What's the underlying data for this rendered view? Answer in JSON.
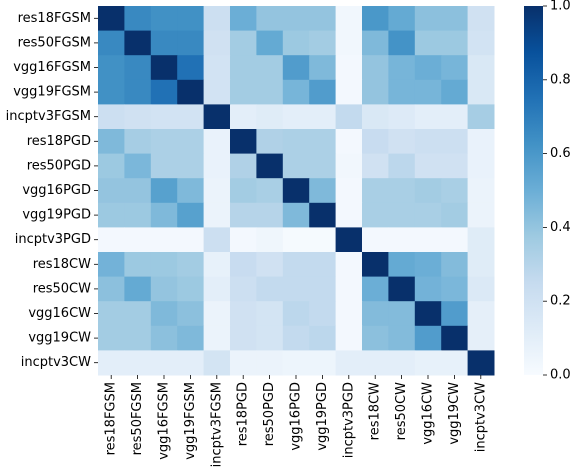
{
  "chart_data": {
    "type": "heatmap",
    "title": "",
    "xlabel": "",
    "ylabel": "",
    "x_labels": [
      "res18FGSM",
      "res50FGSM",
      "vgg16FGSM",
      "vgg19FGSM",
      "incptv3FGSM",
      "res18PGD",
      "res50PGD",
      "vgg16PGD",
      "vgg19PGD",
      "incptv3PGD",
      "res18CW",
      "res50CW",
      "vgg16CW",
      "vgg19CW",
      "incptv3CW"
    ],
    "y_labels": [
      "res18FGSM",
      "res50FGSM",
      "vgg16FGSM",
      "vgg19FGSM",
      "incptv3FGSM",
      "res18PGD",
      "res50PGD",
      "vgg16PGD",
      "vgg19PGD",
      "incptv3PGD",
      "res18CW",
      "res50CW",
      "vgg16CW",
      "vgg19CW",
      "incptv3CW"
    ],
    "values": [
      [
        1.0,
        0.66,
        0.63,
        0.63,
        0.22,
        0.5,
        0.4,
        0.4,
        0.4,
        0.03,
        0.6,
        0.52,
        0.42,
        0.42,
        0.2
      ],
      [
        0.66,
        1.0,
        0.66,
        0.66,
        0.2,
        0.36,
        0.52,
        0.38,
        0.36,
        0.03,
        0.45,
        0.62,
        0.38,
        0.38,
        0.19
      ],
      [
        0.63,
        0.66,
        1.0,
        0.75,
        0.19,
        0.36,
        0.36,
        0.58,
        0.45,
        0.02,
        0.4,
        0.47,
        0.5,
        0.47,
        0.15
      ],
      [
        0.63,
        0.66,
        0.75,
        1.0,
        0.19,
        0.36,
        0.36,
        0.47,
        0.58,
        0.02,
        0.4,
        0.47,
        0.47,
        0.52,
        0.15
      ],
      [
        0.22,
        0.2,
        0.19,
        0.19,
        1.0,
        0.1,
        0.12,
        0.1,
        0.1,
        0.26,
        0.15,
        0.13,
        0.1,
        0.1,
        0.35
      ],
      [
        0.45,
        0.35,
        0.33,
        0.33,
        0.07,
        1.0,
        0.32,
        0.33,
        0.33,
        0.02,
        0.24,
        0.2,
        0.22,
        0.22,
        0.07
      ],
      [
        0.38,
        0.46,
        0.33,
        0.33,
        0.07,
        0.32,
        1.0,
        0.33,
        0.33,
        0.03,
        0.2,
        0.28,
        0.2,
        0.2,
        0.07
      ],
      [
        0.4,
        0.4,
        0.56,
        0.45,
        0.06,
        0.36,
        0.34,
        1.0,
        0.45,
        0.02,
        0.34,
        0.34,
        0.36,
        0.34,
        0.06
      ],
      [
        0.38,
        0.38,
        0.45,
        0.56,
        0.06,
        0.3,
        0.3,
        0.45,
        1.0,
        0.02,
        0.34,
        0.34,
        0.34,
        0.36,
        0.06
      ],
      [
        0.02,
        0.02,
        0.02,
        0.02,
        0.22,
        0.02,
        0.04,
        0.01,
        0.01,
        1.0,
        0.02,
        0.02,
        0.02,
        0.02,
        0.12
      ],
      [
        0.48,
        0.38,
        0.38,
        0.36,
        0.08,
        0.24,
        0.2,
        0.26,
        0.26,
        0.02,
        1.0,
        0.52,
        0.5,
        0.44,
        0.12
      ],
      [
        0.42,
        0.52,
        0.4,
        0.38,
        0.1,
        0.22,
        0.26,
        0.26,
        0.26,
        0.02,
        0.5,
        1.0,
        0.48,
        0.46,
        0.14
      ],
      [
        0.36,
        0.36,
        0.45,
        0.42,
        0.06,
        0.2,
        0.18,
        0.28,
        0.26,
        0.02,
        0.44,
        0.44,
        1.0,
        0.58,
        0.09
      ],
      [
        0.36,
        0.36,
        0.42,
        0.45,
        0.06,
        0.2,
        0.18,
        0.26,
        0.28,
        0.02,
        0.42,
        0.44,
        0.58,
        1.0,
        0.09
      ],
      [
        0.1,
        0.1,
        0.1,
        0.1,
        0.18,
        0.06,
        0.06,
        0.05,
        0.05,
        0.1,
        0.1,
        0.1,
        0.08,
        0.08,
        1.0
      ]
    ],
    "vmin": 0,
    "vmax": 1,
    "colormap": "Blues",
    "colorbar_ticks": [
      "0.0",
      "0.2",
      "0.4",
      "0.6",
      "0.8",
      "1.0"
    ],
    "colorbar_tick_values": [
      0,
      0.2,
      0.4,
      0.6,
      0.8,
      1.0
    ],
    "grid": false,
    "legend": "colorbar-right"
  }
}
